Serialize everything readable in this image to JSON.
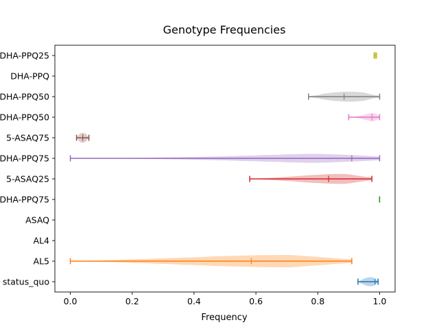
{
  "chart_data": {
    "type": "violin",
    "orientation": "horizontal",
    "title": "Genotype Frequencies",
    "xlabel": "Frequency",
    "ylabel": "",
    "xlim": [
      -0.05,
      1.05
    ],
    "xticks": [
      0.0,
      0.2,
      0.4,
      0.6,
      0.8,
      1.0
    ],
    "xtick_labels": [
      "0.0",
      "0.2",
      "0.4",
      "0.6",
      "0.8",
      "1.0"
    ],
    "grid": false,
    "categories": [
      "status_quo",
      "AL5",
      "AL4",
      "ASAQ",
      "DHA-PPQ75",
      "5-ASAQ25",
      "DHA-PPQ75",
      "5-ASAQ75",
      "DHA-PPQ50",
      "DHA-PPQ50",
      "DHA-PPQ",
      "DHA-PPQ25"
    ],
    "series": [
      {
        "category": "status_quo",
        "min": 0.93,
        "median": 0.985,
        "max": 0.995,
        "color": "#1f77b4",
        "peak": 0.97,
        "width": 0.22
      },
      {
        "category": "AL5",
        "min": 0.0,
        "median": 0.585,
        "max": 0.91,
        "color": "#ff7f0e",
        "peak": 0.7,
        "width": 0.3
      },
      {
        "category": "AL4",
        "min": null,
        "median": null,
        "max": null,
        "color": "#2ca02c"
      },
      {
        "category": "ASAQ",
        "min": null,
        "median": null,
        "max": null,
        "color": "#d62728"
      },
      {
        "category": "DHA-PPQ75",
        "min": 0.9995,
        "median": 0.9998,
        "max": 1.0,
        "color": "#2ca02c",
        "peak": 1.0,
        "width": 0.1
      },
      {
        "category": "5-ASAQ25",
        "min": 0.58,
        "median": 0.835,
        "max": 0.975,
        "color": "#d62728",
        "peak": 0.88,
        "width": 0.24
      },
      {
        "category": "DHA-PPQ75",
        "min": 0.0,
        "median": 0.91,
        "max": 1.0,
        "color": "#9467bd",
        "peak": 0.98,
        "width": 0.26
      },
      {
        "category": "5-ASAQ75",
        "min": 0.02,
        "median": 0.04,
        "max": 0.06,
        "color": "#8c564b",
        "peak": 0.04,
        "width": 0.24
      },
      {
        "category": "DHA-PPQ50",
        "min": 0.9,
        "median": 0.975,
        "max": 1.0,
        "color": "#e377c2",
        "peak": 0.99,
        "width": 0.22
      },
      {
        "category": "DHA-PPQ50",
        "min": 0.77,
        "median": 0.885,
        "max": 1.0,
        "color": "#7f7f7f",
        "peak": 0.9,
        "width": 0.24
      },
      {
        "category": "DHA-PPQ",
        "min": null,
        "median": null,
        "max": null,
        "color": "#7f7f7f"
      },
      {
        "category": "DHA-PPQ25",
        "min": 0.982,
        "median": 0.986,
        "max": 0.99,
        "color": "#bcbd22",
        "peak": 0.986,
        "width": 0.2
      }
    ]
  }
}
